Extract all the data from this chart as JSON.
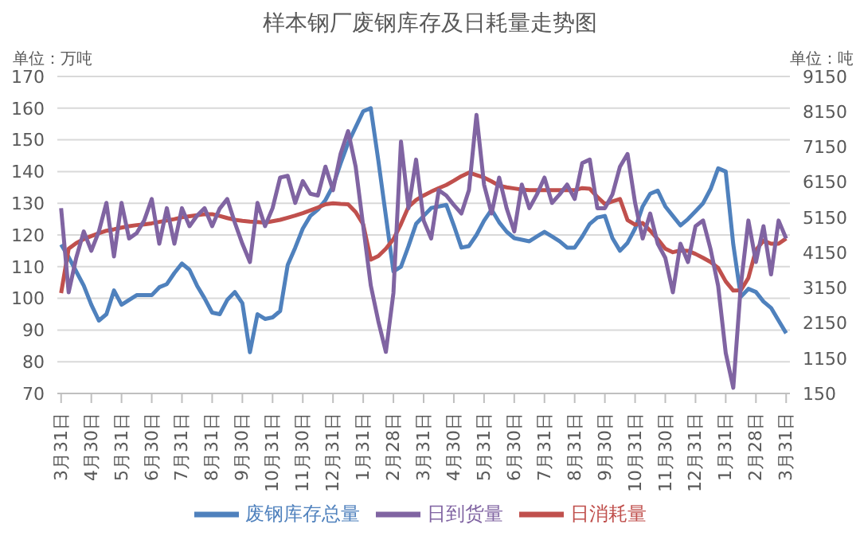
{
  "chart_data": {
    "type": "line",
    "title": "样本钢厂废钢库存及日耗量走势图",
    "ylabel": "单位：万吨",
    "y2label": "单位：吨",
    "categories": [
      "3月31日",
      null,
      null,
      null,
      "4月30日",
      null,
      null,
      null,
      "5月31日",
      null,
      null,
      null,
      "6月30日",
      null,
      null,
      null,
      "7月31日",
      null,
      null,
      null,
      "8月31日",
      null,
      null,
      null,
      "9月30日",
      null,
      null,
      null,
      "10月31日",
      null,
      null,
      null,
      "11月30日",
      null,
      null,
      null,
      "12月31日",
      null,
      null,
      null,
      "1月31日",
      null,
      null,
      null,
      "2月28日",
      null,
      null,
      null,
      "3月31日",
      null,
      null,
      null,
      "4月30日",
      null,
      null,
      null,
      "5月31日",
      null,
      null,
      null,
      "6月30日",
      null,
      null,
      null,
      "7月31日",
      null,
      null,
      null,
      "8月31日",
      null,
      null,
      null,
      "9月30日",
      null,
      null,
      null,
      "10月31日",
      null,
      null,
      null,
      "11月30日",
      null,
      null,
      null,
      "12月31日",
      null,
      null,
      null,
      "1月31日",
      null,
      null,
      null,
      "2月28日",
      null,
      null,
      null,
      "3月31日"
    ],
    "ylim": [
      70,
      170
    ],
    "yticks": [
      70,
      80,
      90,
      100,
      110,
      120,
      130,
      140,
      150,
      160,
      170
    ],
    "y2lim": [
      150,
      9150
    ],
    "y2ticks": [
      150,
      1150,
      2150,
      3150,
      4150,
      5150,
      6150,
      7150,
      8150,
      9150
    ],
    "grid": "y",
    "legend": "bottom",
    "marker": "none",
    "line_style": "solid",
    "series": [
      {
        "name": "废钢库存总量",
        "color": "#4f81bd",
        "values": [
          117,
          113,
          108.5,
          104,
          98,
          93,
          95,
          102.5,
          98,
          99.5,
          101,
          101,
          101,
          103.5,
          104.5,
          108,
          111,
          109,
          104,
          100,
          95.5,
          95,
          99.5,
          102,
          98.5,
          83,
          95,
          93.5,
          94,
          96,
          110.5,
          116,
          122,
          126,
          128,
          131,
          135.5,
          142.5,
          149,
          154,
          159,
          160,
          143.5,
          126,
          108.5,
          110,
          116.5,
          123.5,
          126,
          128.5,
          129,
          129.5,
          123,
          116,
          116.5,
          120,
          124.5,
          128,
          124,
          121,
          119,
          118.5,
          118,
          119.5,
          121,
          119.5,
          118,
          116,
          116,
          119.5,
          123.5,
          125.5,
          126,
          119,
          115,
          117.5,
          122,
          129,
          133,
          134,
          129,
          126,
          123,
          125,
          127.5,
          130,
          134.5,
          141,
          140,
          117,
          100.5,
          103,
          102,
          99,
          97,
          93,
          89
        ]
      },
      {
        "name": "日消耗量",
        "color": "#c0504d",
        "axis": "y2",
        "values": [
          3000,
          4260,
          4420,
          4530,
          4620,
          4700,
          4770,
          4810,
          4860,
          4900,
          4930,
          4950,
          4980,
          5020,
          5060,
          5100,
          5150,
          5180,
          5210,
          5240,
          5240,
          5190,
          5130,
          5080,
          5050,
          5030,
          5020,
          5000,
          5040,
          5080,
          5140,
          5200,
          5270,
          5350,
          5430,
          5520,
          5550,
          5530,
          5520,
          5300,
          4950,
          3950,
          4050,
          4260,
          4530,
          4960,
          5450,
          5640,
          5770,
          5880,
          5980,
          6070,
          6190,
          6320,
          6420,
          6350,
          6280,
          6170,
          6050,
          6000,
          5970,
          5940,
          5920,
          5920,
          5920,
          5920,
          5920,
          5920,
          5920,
          5980,
          5960,
          5730,
          5530,
          5600,
          5670,
          5070,
          4940,
          4990,
          4770,
          4530,
          4260,
          4160,
          4210,
          4200,
          4110,
          4000,
          3880,
          3710,
          3330,
          3070,
          3080,
          3430,
          4220,
          4490,
          4400,
          4400,
          4550
        ]
      },
      {
        "name": "日到货量",
        "color": "#8064a2",
        "axis": "y2",
        "values": [
          5410,
          3020,
          4000,
          4750,
          4200,
          4750,
          5560,
          4040,
          5560,
          4550,
          4700,
          5060,
          5670,
          4400,
          5410,
          4400,
          5410,
          4900,
          5200,
          5410,
          4900,
          5400,
          5670,
          5000,
          4400,
          3880,
          5560,
          4900,
          5410,
          6280,
          6330,
          5560,
          6180,
          5820,
          5770,
          6590,
          5920,
          6950,
          7600,
          6590,
          4900,
          3220,
          2200,
          1330,
          3000,
          7300,
          5410,
          6790,
          5060,
          4550,
          5920,
          5770,
          5500,
          5260,
          5920,
          8060,
          6080,
          5260,
          6280,
          5400,
          4750,
          6080,
          5410,
          5800,
          6280,
          5560,
          5800,
          6080,
          5670,
          6690,
          6790,
          5410,
          5410,
          5800,
          6590,
          6950,
          5560,
          4550,
          5260,
          4400,
          4000,
          3020,
          4400,
          3880,
          4900,
          5060,
          4240,
          3200,
          1300,
          310,
          3220,
          5060,
          3880,
          4900,
          3530,
          5060,
          4550
        ]
      }
    ]
  }
}
